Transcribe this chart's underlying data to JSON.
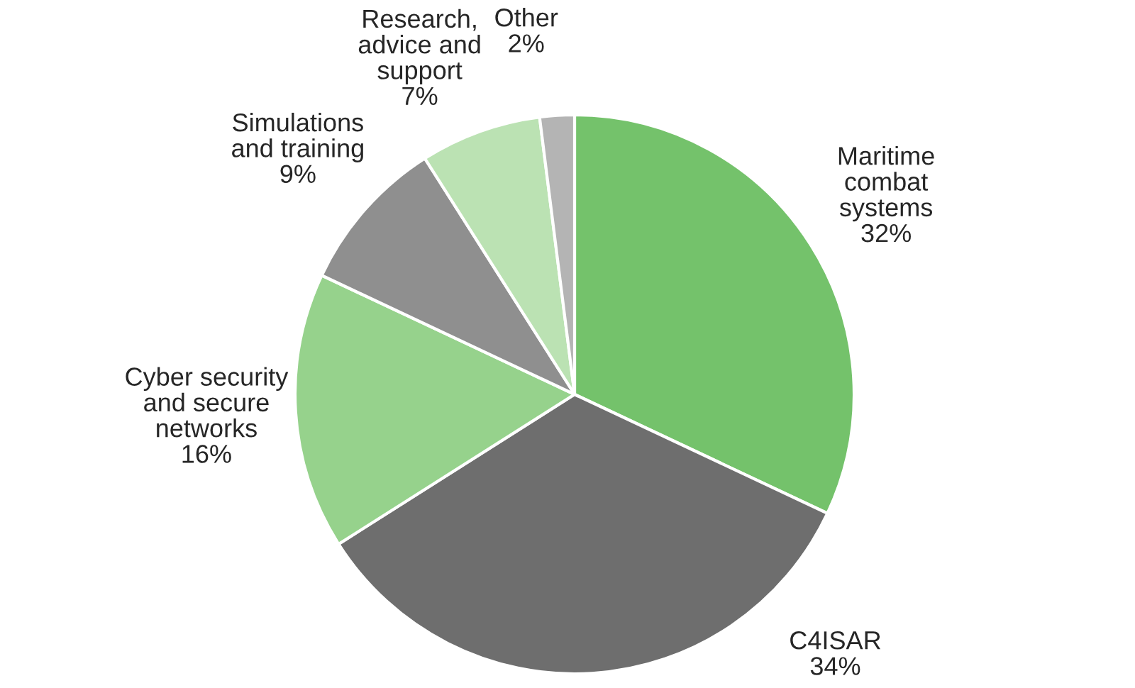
{
  "chart_data": {
    "type": "pie",
    "categories": [
      "Maritime\ncombat\nsystems",
      "C4ISAR",
      "Cyber security\nand secure\nnetworks",
      "Simulations\nand training",
      "Research,\nadvice and\nsupport",
      "Other"
    ],
    "values": [
      32,
      34,
      16,
      9,
      7,
      2
    ],
    "value_labels": [
      "32%",
      "34%",
      "16%",
      "9%",
      "7%",
      "2%"
    ],
    "colors": [
      "#74c26b",
      "#6e6e6e",
      "#96d28c",
      "#8f8f8f",
      "#bbe2b3",
      "#b4b4b4"
    ],
    "legend": false
  }
}
